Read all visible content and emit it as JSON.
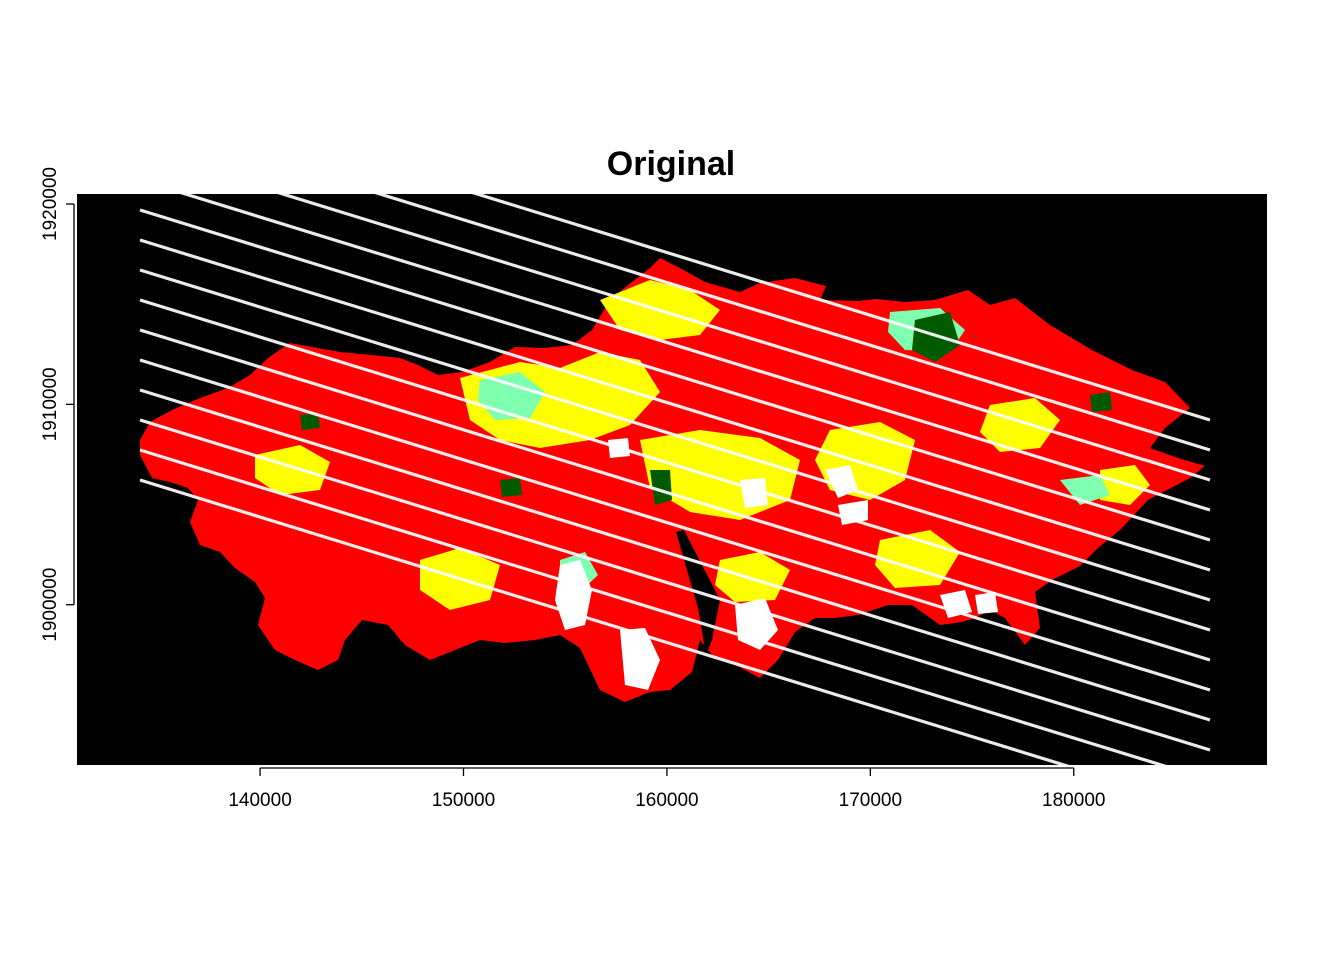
{
  "title": "Original",
  "colors": {
    "background_raster": "#000000",
    "class_red": "#ff0000",
    "class_yellow": "#ffff00",
    "class_lightgreen": "#7fffb0",
    "class_darkgreen": "#005a00",
    "nodata_white": "#ffffff"
  },
  "map": {
    "x_axis": {
      "range": [
        131000,
        189500
      ],
      "ticks": [
        140000,
        150000,
        160000,
        170000,
        180000
      ],
      "tick_labels": [
        "140000",
        "150000",
        "160000",
        "170000",
        "180000"
      ]
    },
    "y_axis": {
      "range": [
        1892000,
        1920500
      ],
      "ticks": [
        1900000,
        1910000,
        1920000
      ],
      "tick_labels": [
        "1900000",
        "1910000",
        "1920000"
      ]
    }
  }
}
